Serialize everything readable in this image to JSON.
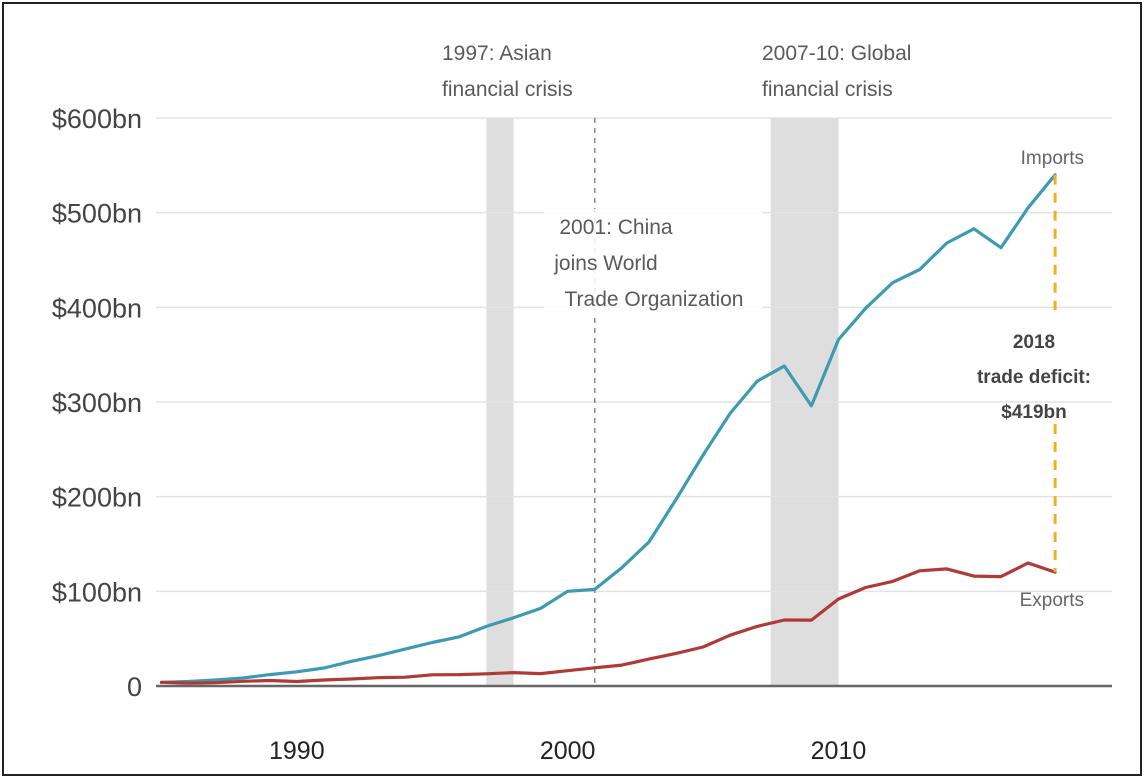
{
  "chart_data": {
    "type": "line",
    "title": "",
    "xlabel": "",
    "ylabel": "",
    "ylim": [
      0,
      600
    ],
    "xlim": [
      1984.8,
      2020.1
    ],
    "yticks": [
      {
        "value": 0,
        "label": "0"
      },
      {
        "value": 100,
        "label": "$100bn"
      },
      {
        "value": 200,
        "label": "$200bn"
      },
      {
        "value": 300,
        "label": "$300bn"
      },
      {
        "value": 400,
        "label": "$400bn"
      },
      {
        "value": 500,
        "label": "$500bn"
      },
      {
        "value": 600,
        "label": "$600bn"
      }
    ],
    "xticks": [
      {
        "value": 1990,
        "label": "1990"
      },
      {
        "value": 2000,
        "label": "2000"
      },
      {
        "value": 2010,
        "label": "2010"
      }
    ],
    "series": [
      {
        "name": "Imports",
        "color": "#3e9ab3",
        "x": [
          1985,
          1986,
          1987,
          1988,
          1989,
          1990,
          1991,
          1992,
          1993,
          1994,
          1995,
          1996,
          1997,
          1998,
          1999,
          2000,
          2001,
          2002,
          2003,
          2004,
          2005,
          2006,
          2007,
          2008,
          2009,
          2010,
          2011,
          2012,
          2013,
          2014,
          2015,
          2016,
          2017,
          2018
        ],
        "values": [
          3.9,
          4.8,
          6.3,
          8.5,
          12,
          15,
          19,
          26,
          32,
          39,
          46,
          52,
          63,
          72,
          82,
          100,
          102,
          125,
          152,
          197,
          244,
          288,
          322,
          338,
          296,
          366,
          399,
          426,
          440,
          468,
          483,
          463,
          505,
          540
        ]
      },
      {
        "name": "Exports",
        "color": "#b03a35",
        "x": [
          1985,
          1986,
          1987,
          1988,
          1989,
          1990,
          1991,
          1992,
          1993,
          1994,
          1995,
          1996,
          1997,
          1998,
          1999,
          2000,
          2001,
          2002,
          2003,
          2004,
          2005,
          2006,
          2007,
          2008,
          2009,
          2010,
          2011,
          2012,
          2013,
          2014,
          2015,
          2016,
          2017,
          2018
        ],
        "values": [
          3.9,
          3.1,
          3.5,
          5,
          5.8,
          4.8,
          6.3,
          7.4,
          8.8,
          9.3,
          11.8,
          12,
          12.9,
          14.2,
          13.1,
          16.2,
          19.2,
          22.1,
          28.4,
          34.4,
          41.2,
          53.7,
          63,
          69.7,
          69.6,
          91.9,
          104.1,
          110.5,
          121.7,
          123.7,
          116.1,
          115.6,
          129.9,
          120.3
        ]
      }
    ],
    "shaded_periods": [
      {
        "start": 1997,
        "end": 1998
      },
      {
        "start": 2007.5,
        "end": 2010
      }
    ],
    "vertical_marker": {
      "x": 2001
    },
    "annotations": {
      "asian_crisis": [
        "1997: Asian",
        "financial crisis"
      ],
      "global_crisis": [
        "2007-10: Global",
        "financial crisis"
      ],
      "wto": [
        "2001: China",
        "joins World",
        "Trade Organization"
      ],
      "deficit": [
        "2018",
        "trade deficit:",
        "$419bn"
      ]
    },
    "deficit_bar": {
      "x": 2018,
      "from": 120.3,
      "to": 540,
      "color": "#f0b020"
    },
    "grid": true,
    "legend": "inline labels at line ends"
  }
}
